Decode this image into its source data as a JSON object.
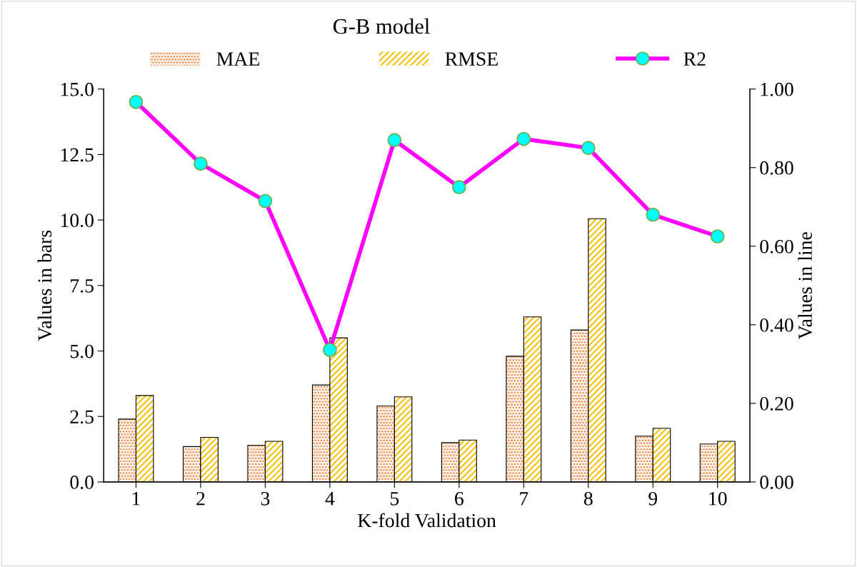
{
  "chart_data": {
    "type": "bar",
    "title": "G-B model",
    "xlabel": "K-fold Validation",
    "ylabel": "Values in bars",
    "y2label": "Values in line",
    "categories": [
      "1",
      "2",
      "3",
      "4",
      "5",
      "6",
      "7",
      "8",
      "9",
      "10"
    ],
    "series": [
      {
        "name": "MAE",
        "color": "#ed7d31",
        "values": [
          2.4,
          1.35,
          1.4,
          3.7,
          2.9,
          1.5,
          4.8,
          5.8,
          1.75,
          1.45
        ]
      },
      {
        "name": "RMSE",
        "color": "#ffc000",
        "values": [
          3.3,
          1.7,
          1.55,
          5.5,
          3.25,
          1.6,
          6.3,
          10.05,
          2.05,
          1.55
        ]
      },
      {
        "name": "R2",
        "type": "line",
        "axis": "y2",
        "color": "#ff00ff",
        "values": [
          0.967,
          0.81,
          0.715,
          0.336,
          0.87,
          0.75,
          0.873,
          0.85,
          0.68,
          0.625
        ]
      }
    ],
    "ylim": [
      0,
      15
    ],
    "yticks": [
      {
        "value": 0,
        "label": "0.0"
      },
      {
        "value": 2.5,
        "label": "2.5"
      },
      {
        "value": 5,
        "label": "5.0"
      },
      {
        "value": 7.5,
        "label": "7.5"
      },
      {
        "value": 10,
        "label": "10.0"
      },
      {
        "value": 12.5,
        "label": "12.5"
      },
      {
        "value": 15,
        "label": "15.0"
      }
    ],
    "y2lim": [
      0,
      1
    ],
    "y2ticks": [
      {
        "value": 0,
        "label": "0.00"
      },
      {
        "value": 0.2,
        "label": "0.20"
      },
      {
        "value": 0.4,
        "label": "0.40"
      },
      {
        "value": 0.6,
        "label": "0.60"
      },
      {
        "value": 0.8,
        "label": "0.80"
      },
      {
        "value": 1,
        "label": "1.00"
      }
    ],
    "legend": "top",
    "marker": "circle",
    "grid": false
  }
}
